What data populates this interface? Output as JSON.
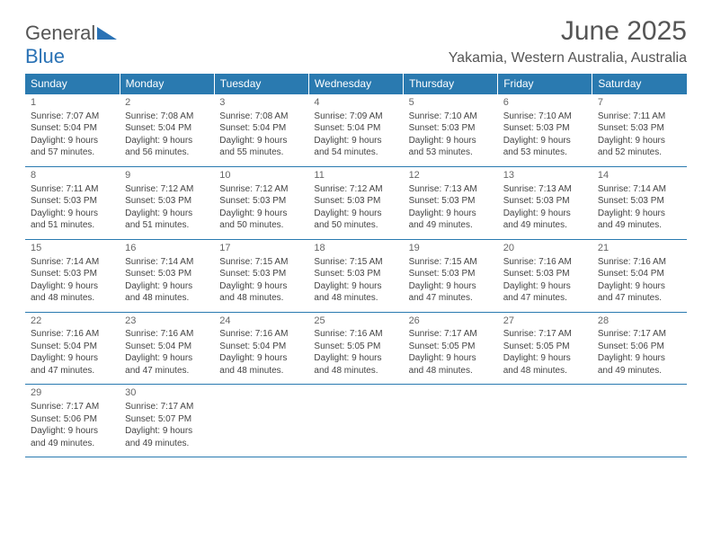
{
  "logo": {
    "word1": "General",
    "word2": "Blue"
  },
  "title": "June 2025",
  "location": "Yakamia, Western Australia, Australia",
  "colors": {
    "header_bg": "#2a7ab0",
    "header_text": "#ffffff",
    "row_border": "#2a7ab0",
    "body_text": "#444444",
    "title_text": "#555555"
  },
  "weekdays": [
    "Sunday",
    "Monday",
    "Tuesday",
    "Wednesday",
    "Thursday",
    "Friday",
    "Saturday"
  ],
  "weeks": [
    [
      {
        "day": "1",
        "sunrise": "Sunrise: 7:07 AM",
        "sunset": "Sunset: 5:04 PM",
        "daylight": "Daylight: 9 hours and 57 minutes."
      },
      {
        "day": "2",
        "sunrise": "Sunrise: 7:08 AM",
        "sunset": "Sunset: 5:04 PM",
        "daylight": "Daylight: 9 hours and 56 minutes."
      },
      {
        "day": "3",
        "sunrise": "Sunrise: 7:08 AM",
        "sunset": "Sunset: 5:04 PM",
        "daylight": "Daylight: 9 hours and 55 minutes."
      },
      {
        "day": "4",
        "sunrise": "Sunrise: 7:09 AM",
        "sunset": "Sunset: 5:04 PM",
        "daylight": "Daylight: 9 hours and 54 minutes."
      },
      {
        "day": "5",
        "sunrise": "Sunrise: 7:10 AM",
        "sunset": "Sunset: 5:03 PM",
        "daylight": "Daylight: 9 hours and 53 minutes."
      },
      {
        "day": "6",
        "sunrise": "Sunrise: 7:10 AM",
        "sunset": "Sunset: 5:03 PM",
        "daylight": "Daylight: 9 hours and 53 minutes."
      },
      {
        "day": "7",
        "sunrise": "Sunrise: 7:11 AM",
        "sunset": "Sunset: 5:03 PM",
        "daylight": "Daylight: 9 hours and 52 minutes."
      }
    ],
    [
      {
        "day": "8",
        "sunrise": "Sunrise: 7:11 AM",
        "sunset": "Sunset: 5:03 PM",
        "daylight": "Daylight: 9 hours and 51 minutes."
      },
      {
        "day": "9",
        "sunrise": "Sunrise: 7:12 AM",
        "sunset": "Sunset: 5:03 PM",
        "daylight": "Daylight: 9 hours and 51 minutes."
      },
      {
        "day": "10",
        "sunrise": "Sunrise: 7:12 AM",
        "sunset": "Sunset: 5:03 PM",
        "daylight": "Daylight: 9 hours and 50 minutes."
      },
      {
        "day": "11",
        "sunrise": "Sunrise: 7:12 AM",
        "sunset": "Sunset: 5:03 PM",
        "daylight": "Daylight: 9 hours and 50 minutes."
      },
      {
        "day": "12",
        "sunrise": "Sunrise: 7:13 AM",
        "sunset": "Sunset: 5:03 PM",
        "daylight": "Daylight: 9 hours and 49 minutes."
      },
      {
        "day": "13",
        "sunrise": "Sunrise: 7:13 AM",
        "sunset": "Sunset: 5:03 PM",
        "daylight": "Daylight: 9 hours and 49 minutes."
      },
      {
        "day": "14",
        "sunrise": "Sunrise: 7:14 AM",
        "sunset": "Sunset: 5:03 PM",
        "daylight": "Daylight: 9 hours and 49 minutes."
      }
    ],
    [
      {
        "day": "15",
        "sunrise": "Sunrise: 7:14 AM",
        "sunset": "Sunset: 5:03 PM",
        "daylight": "Daylight: 9 hours and 48 minutes."
      },
      {
        "day": "16",
        "sunrise": "Sunrise: 7:14 AM",
        "sunset": "Sunset: 5:03 PM",
        "daylight": "Daylight: 9 hours and 48 minutes."
      },
      {
        "day": "17",
        "sunrise": "Sunrise: 7:15 AM",
        "sunset": "Sunset: 5:03 PM",
        "daylight": "Daylight: 9 hours and 48 minutes."
      },
      {
        "day": "18",
        "sunrise": "Sunrise: 7:15 AM",
        "sunset": "Sunset: 5:03 PM",
        "daylight": "Daylight: 9 hours and 48 minutes."
      },
      {
        "day": "19",
        "sunrise": "Sunrise: 7:15 AM",
        "sunset": "Sunset: 5:03 PM",
        "daylight": "Daylight: 9 hours and 47 minutes."
      },
      {
        "day": "20",
        "sunrise": "Sunrise: 7:16 AM",
        "sunset": "Sunset: 5:03 PM",
        "daylight": "Daylight: 9 hours and 47 minutes."
      },
      {
        "day": "21",
        "sunrise": "Sunrise: 7:16 AM",
        "sunset": "Sunset: 5:04 PM",
        "daylight": "Daylight: 9 hours and 47 minutes."
      }
    ],
    [
      {
        "day": "22",
        "sunrise": "Sunrise: 7:16 AM",
        "sunset": "Sunset: 5:04 PM",
        "daylight": "Daylight: 9 hours and 47 minutes."
      },
      {
        "day": "23",
        "sunrise": "Sunrise: 7:16 AM",
        "sunset": "Sunset: 5:04 PM",
        "daylight": "Daylight: 9 hours and 47 minutes."
      },
      {
        "day": "24",
        "sunrise": "Sunrise: 7:16 AM",
        "sunset": "Sunset: 5:04 PM",
        "daylight": "Daylight: 9 hours and 48 minutes."
      },
      {
        "day": "25",
        "sunrise": "Sunrise: 7:16 AM",
        "sunset": "Sunset: 5:05 PM",
        "daylight": "Daylight: 9 hours and 48 minutes."
      },
      {
        "day": "26",
        "sunrise": "Sunrise: 7:17 AM",
        "sunset": "Sunset: 5:05 PM",
        "daylight": "Daylight: 9 hours and 48 minutes."
      },
      {
        "day": "27",
        "sunrise": "Sunrise: 7:17 AM",
        "sunset": "Sunset: 5:05 PM",
        "daylight": "Daylight: 9 hours and 48 minutes."
      },
      {
        "day": "28",
        "sunrise": "Sunrise: 7:17 AM",
        "sunset": "Sunset: 5:06 PM",
        "daylight": "Daylight: 9 hours and 49 minutes."
      }
    ],
    [
      {
        "day": "29",
        "sunrise": "Sunrise: 7:17 AM",
        "sunset": "Sunset: 5:06 PM",
        "daylight": "Daylight: 9 hours and 49 minutes."
      },
      {
        "day": "30",
        "sunrise": "Sunrise: 7:17 AM",
        "sunset": "Sunset: 5:07 PM",
        "daylight": "Daylight: 9 hours and 49 minutes."
      },
      null,
      null,
      null,
      null,
      null
    ]
  ]
}
